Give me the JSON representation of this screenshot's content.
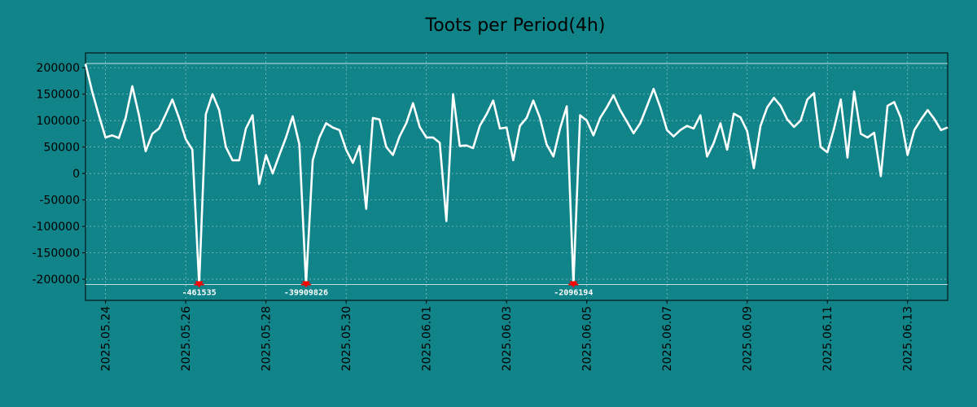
{
  "chart_data": {
    "type": "line",
    "title": "Toots per Period(4h)",
    "xlabel": "",
    "ylabel": "",
    "ylim": [
      -240000,
      228000
    ],
    "grid": true,
    "line_color": "#ffffff",
    "background_color": "#108488",
    "marker_color": "#ff0000",
    "y_ticks": [
      200000,
      150000,
      100000,
      50000,
      0,
      -50000,
      -100000,
      -150000,
      -200000
    ],
    "y_tick_labels": [
      "200000",
      "150000",
      "100000",
      "50000",
      "0",
      "-50000",
      "-100000",
      "-150000",
      "-200000"
    ],
    "x_start": "2025-05-23T12:00",
    "period_hours": 4,
    "x_end": "2025-06-14T00:00",
    "x_ticks": [
      "2025-05-24",
      "2025-05-26",
      "2025-05-28",
      "2025-05-30",
      "2025-06-01",
      "2025-06-03",
      "2025-06-05",
      "2025-06-07",
      "2025-06-09",
      "2025-06-11",
      "2025-06-13"
    ],
    "x_tick_labels": [
      "2025.05.24",
      "2025.05.26",
      "2025.05.28",
      "2025.05.30",
      "2025.06.01",
      "2025.06.03",
      "2025.06.05",
      "2025.06.07",
      "2025.06.09",
      "2025.06.11",
      "2025.06.13"
    ],
    "reference_lines": [
      208000,
      -210000
    ],
    "values": [
      207000,
      155000,
      110000,
      68000,
      72000,
      67000,
      105000,
      165000,
      110000,
      42000,
      75000,
      85000,
      112000,
      140000,
      105000,
      65000,
      45000,
      -210000,
      112000,
      150000,
      120000,
      50000,
      25000,
      25000,
      85000,
      110000,
      -20000,
      35000,
      0,
      35000,
      68000,
      108000,
      55000,
      -210000,
      25000,
      68000,
      95000,
      87000,
      82000,
      45000,
      20000,
      52000,
      -67000,
      105000,
      102000,
      50000,
      35000,
      70000,
      95000,
      133000,
      88000,
      68000,
      68000,
      58000,
      -90000,
      150000,
      52000,
      53000,
      48000,
      90000,
      112000,
      138000,
      85000,
      87000,
      25000,
      90000,
      105000,
      138000,
      105000,
      55000,
      32000,
      85000,
      127000,
      -210000,
      110000,
      100000,
      72000,
      105000,
      125000,
      148000,
      120000,
      98000,
      76000,
      95000,
      127000,
      160000,
      125000,
      82000,
      70000,
      82000,
      90000,
      85000,
      110000,
      32000,
      58000,
      95000,
      45000,
      113000,
      106000,
      80000,
      10000,
      90000,
      125000,
      143000,
      128000,
      102000,
      88000,
      100000,
      140000,
      152000,
      50000,
      40000,
      85000,
      140000,
      30000,
      155000,
      75000,
      68000,
      77000,
      -5000,
      128000,
      135000,
      105000,
      35000,
      82000,
      102000,
      120000,
      103000,
      82000,
      87000
    ],
    "annotations": [
      {
        "index": 17,
        "label": "-461535"
      },
      {
        "index": 33,
        "label": "-39909826"
      },
      {
        "index": 73,
        "label": "-2096194"
      }
    ]
  }
}
